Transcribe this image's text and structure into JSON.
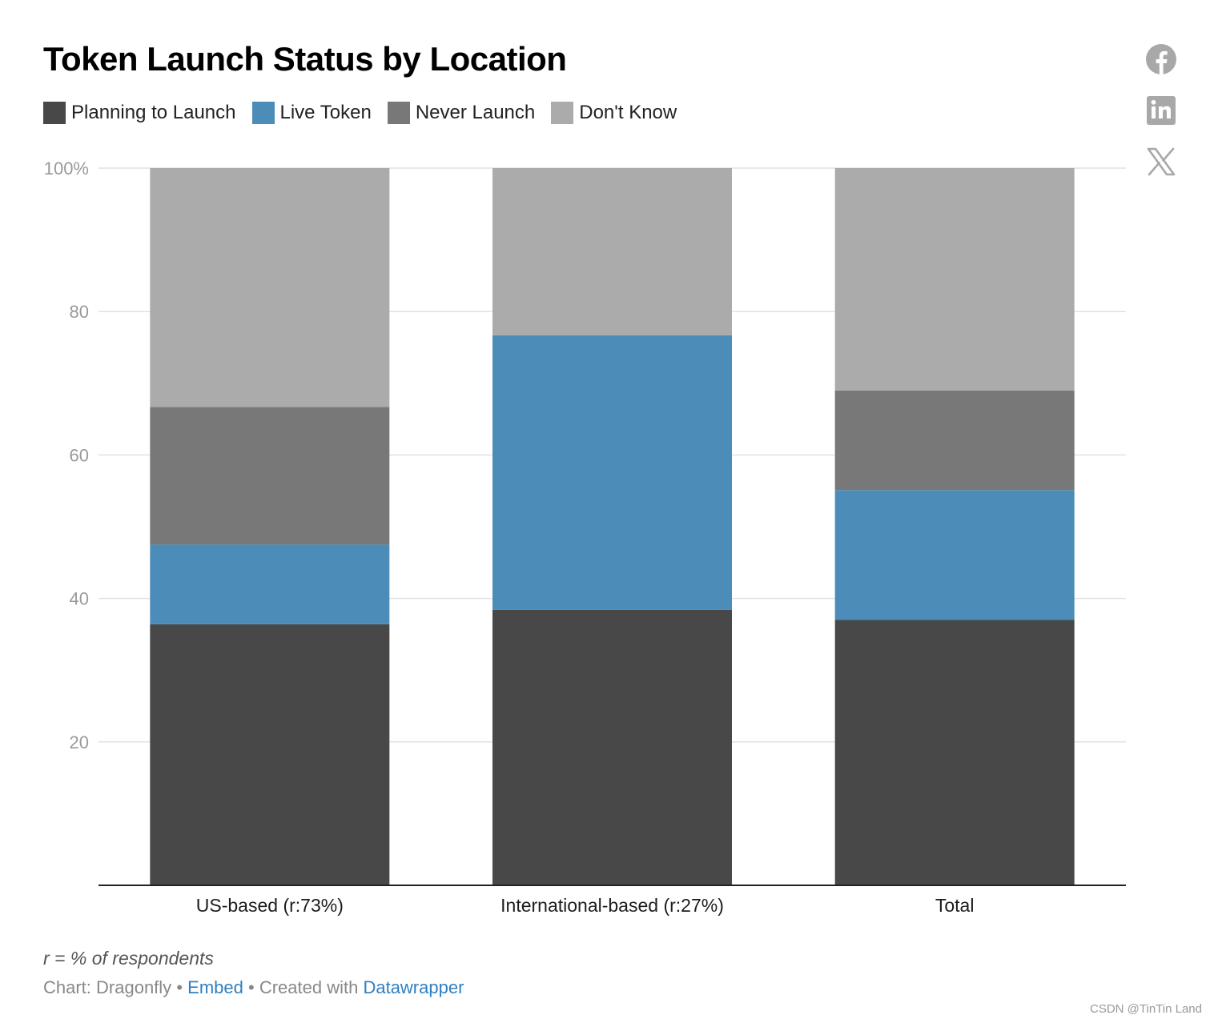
{
  "title": "Token Launch Status by Location",
  "legend": [
    {
      "label": "Planning to Launch",
      "color": "#484848"
    },
    {
      "label": "Live Token",
      "color": "#4b8db8"
    },
    {
      "label": "Never Launch",
      "color": "#787878"
    },
    {
      "label": "Don't Know",
      "color": "#ababab"
    }
  ],
  "social": {
    "icons": [
      "facebook-icon",
      "linkedin-icon",
      "x-icon"
    ]
  },
  "chart_data": {
    "type": "bar",
    "stacked": true,
    "categories": [
      "US-based (r:73%)",
      "International-based (r:27%)",
      "Total"
    ],
    "series": [
      {
        "name": "Planning to Launch",
        "color": "#484848",
        "values": [
          36.4,
          38.4,
          37.0
        ]
      },
      {
        "name": "Live Token",
        "color": "#4b8db8",
        "values": [
          11.1,
          38.3,
          18.1
        ]
      },
      {
        "name": "Never Launch",
        "color": "#787878",
        "values": [
          19.2,
          0,
          13.9
        ]
      },
      {
        "name": "Don't Know",
        "color": "#ababab",
        "values": [
          33.3,
          23.3,
          31.0
        ]
      }
    ],
    "ylim": [
      0,
      100
    ],
    "yticks": [
      20,
      40,
      60,
      80,
      100
    ],
    "ytick_labels": [
      "20",
      "40",
      "60",
      "80",
      "100%"
    ],
    "grid": true,
    "legend_position": "top-left"
  },
  "notes": "r = % of respondents",
  "footer": {
    "source": "Chart: Dragonfly",
    "separator": "•",
    "embed_label": "Embed",
    "created_with": "Created with",
    "tool_label": "Datawrapper"
  },
  "watermark": "CSDN @TinTin Land"
}
